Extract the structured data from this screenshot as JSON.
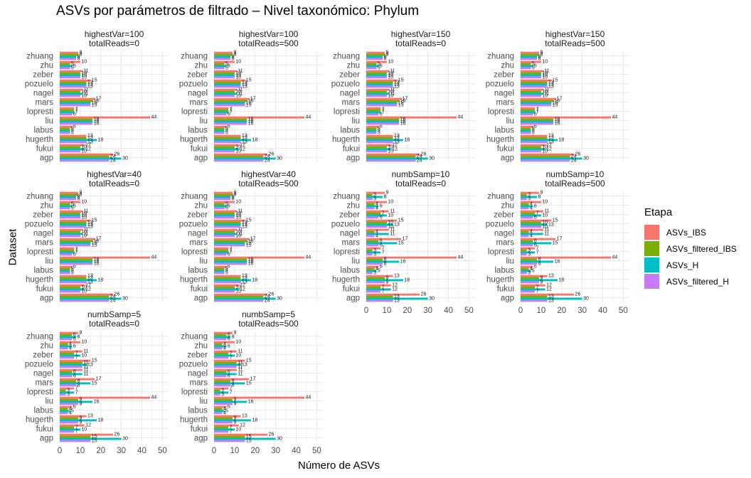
{
  "chart_data": {
    "type": "bar",
    "title": "ASVs por parámetros de filtrado – Nivel taxonómico: Phylum",
    "xlabel": "Número de ASVs",
    "ylabel": "Dataset",
    "xlim": [
      0,
      53
    ],
    "xticks": [
      0,
      10,
      20,
      30,
      40,
      50
    ],
    "grid": true,
    "legend_position": "right",
    "legend_title": "Etapa",
    "categories": [
      "agp",
      "fukui",
      "hugerth",
      "labus",
      "liu",
      "lopresti",
      "mars",
      "nagel",
      "pozuelo",
      "zeber",
      "zhu",
      "zhuang"
    ],
    "series_names": [
      "ASVs_IBS",
      "ASVs_filtered_IBS",
      "ASVs_H",
      "ASVs_filtered_H"
    ],
    "colors": {
      "ASVs_IBS": "#F8766D",
      "ASVs_filtered_IBS": "#7CAE00",
      "ASVs_H": "#00BFC4",
      "ASVs_filtered_H": "#C77CFF"
    },
    "panels": [
      {
        "strip": [
          "highestVar=100",
          "totalReads=0"
        ],
        "series": [
          {
            "name": "ASVs_IBS",
            "values": [
              26,
              12,
              13,
              6,
              44,
              7,
              17,
              11,
              15,
              11,
              10,
              9
            ]
          },
          {
            "name": "ASVs_filtered_IBS",
            "values": [
              24,
              10,
              13,
              5,
              16,
              7,
              16,
              10,
              13,
              10,
              5,
              9
            ]
          },
          {
            "name": "ASVs_H",
            "values": [
              30,
              12,
              18,
              5,
              16,
              7,
              15,
              11,
              13,
              10,
              6,
              8
            ]
          },
          {
            "name": "ASVs_filtered_H",
            "values": [
              24,
              10,
              13,
              5,
              16,
              6,
              15,
              10,
              13,
              10,
              5,
              8
            ]
          }
        ]
      },
      {
        "strip": [
          "highestVar=100",
          "totalReads=500"
        ],
        "series": [
          {
            "name": "ASVs_IBS",
            "values": [
              26,
              12,
              13,
              6,
              44,
              7,
              17,
              11,
              15,
              11,
              10,
              9
            ]
          },
          {
            "name": "ASVs_filtered_IBS",
            "values": [
              24,
              10,
              13,
              5,
              16,
              7,
              16,
              10,
              13,
              10,
              5,
              9
            ]
          },
          {
            "name": "ASVs_H",
            "values": [
              30,
              12,
              18,
              5,
              16,
              7,
              15,
              11,
              13,
              10,
              6,
              8
            ]
          },
          {
            "name": "ASVs_filtered_H",
            "values": [
              24,
              10,
              13,
              5,
              16,
              6,
              15,
              10,
              13,
              10,
              5,
              8
            ]
          }
        ]
      },
      {
        "strip": [
          "highestVar=150",
          "totalReads=0"
        ],
        "series": [
          {
            "name": "ASVs_IBS",
            "values": [
              26,
              12,
              13,
              6,
              44,
              7,
              17,
              11,
              15,
              11,
              10,
              9
            ]
          },
          {
            "name": "ASVs_filtered_IBS",
            "values": [
              24,
              10,
              13,
              5,
              16,
              7,
              16,
              10,
              13,
              10,
              5,
              9
            ]
          },
          {
            "name": "ASVs_H",
            "values": [
              30,
              12,
              18,
              5,
              16,
              7,
              15,
              11,
              13,
              10,
              6,
              8
            ]
          },
          {
            "name": "ASVs_filtered_H",
            "values": [
              24,
              10,
              13,
              5,
              16,
              6,
              15,
              10,
              13,
              10,
              5,
              8
            ]
          }
        ]
      },
      {
        "strip": [
          "highestVar=150",
          "totalReads=500"
        ],
        "series": [
          {
            "name": "ASVs_IBS",
            "values": [
              26,
              12,
              13,
              6,
              44,
              7,
              17,
              11,
              15,
              11,
              10,
              9
            ]
          },
          {
            "name": "ASVs_filtered_IBS",
            "values": [
              24,
              10,
              13,
              5,
              16,
              7,
              16,
              10,
              13,
              10,
              5,
              9
            ]
          },
          {
            "name": "ASVs_H",
            "values": [
              30,
              12,
              18,
              5,
              16,
              7,
              15,
              11,
              13,
              10,
              6,
              8
            ]
          },
          {
            "name": "ASVs_filtered_H",
            "values": [
              24,
              10,
              13,
              5,
              16,
              6,
              15,
              10,
              13,
              10,
              5,
              8
            ]
          }
        ]
      },
      {
        "strip": [
          "highestVar=40",
          "totalReads=0"
        ],
        "series": [
          {
            "name": "ASVs_IBS",
            "values": [
              26,
              12,
              13,
              6,
              44,
              7,
              17,
              11,
              15,
              11,
              10,
              9
            ]
          },
          {
            "name": "ASVs_filtered_IBS",
            "values": [
              24,
              10,
              13,
              5,
              16,
              7,
              16,
              10,
              13,
              10,
              5,
              9
            ]
          },
          {
            "name": "ASVs_H",
            "values": [
              30,
              12,
              18,
              5,
              16,
              7,
              15,
              11,
              13,
              10,
              6,
              8
            ]
          },
          {
            "name": "ASVs_filtered_H",
            "values": [
              24,
              10,
              13,
              5,
              16,
              6,
              15,
              10,
              13,
              10,
              5,
              8
            ]
          }
        ]
      },
      {
        "strip": [
          "highestVar=40",
          "totalReads=500"
        ],
        "series": [
          {
            "name": "ASVs_IBS",
            "values": [
              26,
              12,
              13,
              6,
              44,
              7,
              17,
              11,
              15,
              11,
              10,
              9
            ]
          },
          {
            "name": "ASVs_filtered_IBS",
            "values": [
              24,
              10,
              13,
              5,
              16,
              7,
              16,
              10,
              13,
              10,
              5,
              9
            ]
          },
          {
            "name": "ASVs_H",
            "values": [
              30,
              12,
              18,
              5,
              16,
              7,
              15,
              11,
              13,
              10,
              6,
              8
            ]
          },
          {
            "name": "ASVs_filtered_H",
            "values": [
              24,
              10,
              13,
              5,
              16,
              6,
              15,
              10,
              13,
              10,
              5,
              8
            ]
          }
        ]
      },
      {
        "strip": [
          "numbSamp=10",
          "totalReads=0"
        ],
        "series": [
          {
            "name": "ASVs_IBS",
            "values": [
              26,
              12,
              13,
              6,
              44,
              7,
              17,
              11,
              15,
              11,
              10,
              9
            ]
          },
          {
            "name": "ASVs_filtered_IBS",
            "values": [
              13,
              7,
              9,
              4,
              8,
              3,
              6,
              4,
              10,
              7,
              4,
              3
            ]
          },
          {
            "name": "ASVs_H",
            "values": [
              30,
              12,
              18,
              5,
              16,
              7,
              15,
              11,
              13,
              10,
              6,
              8
            ]
          },
          {
            "name": "ASVs_filtered_H",
            "values": [
              13,
              7,
              9,
              3,
              8,
              3,
              6,
              4,
              10,
              6,
              4,
              3
            ]
          }
        ]
      },
      {
        "strip": [
          "numbSamp=10",
          "totalReads=500"
        ],
        "series": [
          {
            "name": "ASVs_IBS",
            "values": [
              26,
              12,
              13,
              6,
              44,
              7,
              17,
              11,
              15,
              11,
              10,
              9
            ]
          },
          {
            "name": "ASVs_filtered_IBS",
            "values": [
              13,
              7,
              9,
              4,
              8,
              3,
              6,
              4,
              10,
              7,
              4,
              3
            ]
          },
          {
            "name": "ASVs_H",
            "values": [
              30,
              12,
              18,
              5,
              16,
              7,
              15,
              11,
              13,
              10,
              6,
              8
            ]
          },
          {
            "name": "ASVs_filtered_H",
            "values": [
              13,
              7,
              9,
              3,
              8,
              3,
              6,
              4,
              10,
              6,
              4,
              3
            ]
          }
        ]
      },
      {
        "strip": [
          "numbSamp=5",
          "totalReads=0"
        ],
        "series": [
          {
            "name": "ASVs_IBS",
            "values": [
              26,
              12,
              13,
              6,
              44,
              7,
              17,
              11,
              15,
              11,
              10,
              9
            ]
          },
          {
            "name": "ASVs_filtered_IBS",
            "values": [
              15,
              7,
              9,
              4,
              9,
              3,
              8,
              6,
              11,
              7,
              4,
              6
            ]
          },
          {
            "name": "ASVs_H",
            "values": [
              30,
              10,
              18,
              5,
              16,
              7,
              15,
              11,
              13,
              10,
              6,
              8
            ]
          },
          {
            "name": "ASVs_filtered_H",
            "values": [
              15,
              7,
              9,
              4,
              9,
              3,
              8,
              6,
              11,
              7,
              4,
              6
            ]
          }
        ]
      },
      {
        "strip": [
          "numbSamp=5",
          "totalReads=500"
        ],
        "series": [
          {
            "name": "ASVs_IBS",
            "values": [
              26,
              12,
              13,
              6,
              44,
              7,
              17,
              11,
              15,
              11,
              10,
              9
            ]
          },
          {
            "name": "ASVs_filtered_IBS",
            "values": [
              15,
              7,
              9,
              4,
              9,
              3,
              8,
              6,
              11,
              7,
              4,
              6
            ]
          },
          {
            "name": "ASVs_H",
            "values": [
              30,
              10,
              18,
              5,
              16,
              7,
              15,
              11,
              13,
              10,
              6,
              8
            ]
          },
          {
            "name": "ASVs_filtered_H",
            "values": [
              15,
              7,
              9,
              4,
              9,
              3,
              8,
              6,
              11,
              7,
              4,
              6
            ]
          }
        ]
      }
    ]
  }
}
